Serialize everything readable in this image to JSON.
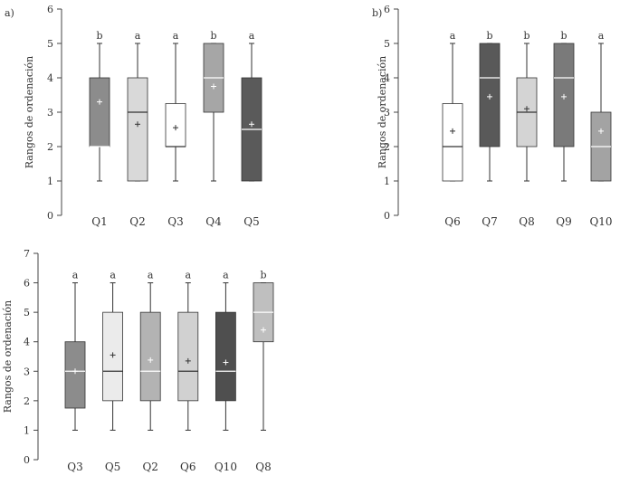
{
  "chart_data": [
    {
      "type": "box",
      "panel_label": "a)",
      "ylabel": "Rangos de ordenación",
      "ylim": [
        0,
        6
      ],
      "yticks": [
        0,
        1,
        2,
        3,
        4,
        5,
        6
      ],
      "categories": [
        "Q1",
        "Q2",
        "Q3",
        "Q4",
        "Q5"
      ],
      "boxes": [
        {
          "name": "Q1",
          "min": 1,
          "q1": 2,
          "median": 2,
          "q3": 4,
          "max": 5,
          "mean": 3.3,
          "letter": "b",
          "fill": "#8c8c8c"
        },
        {
          "name": "Q2",
          "min": 1,
          "q1": 1,
          "median": 3,
          "q3": 4,
          "max": 5,
          "mean": 2.65,
          "letter": "a",
          "fill": "#d9d9d9"
        },
        {
          "name": "Q3",
          "min": 1,
          "q1": 2,
          "median": 2,
          "q3": 3.25,
          "max": 5,
          "mean": 2.55,
          "letter": "a",
          "fill": "#ffffff"
        },
        {
          "name": "Q4",
          "min": 1,
          "q1": 3,
          "median": 4,
          "q3": 5,
          "max": 5,
          "mean": 3.75,
          "letter": "b",
          "fill": "#a6a6a6"
        },
        {
          "name": "Q5",
          "min": 1,
          "q1": 1,
          "median": 2.5,
          "q3": 4,
          "max": 5,
          "mean": 2.65,
          "letter": "a",
          "fill": "#5a5a5a"
        }
      ]
    },
    {
      "type": "box",
      "panel_label": "b)",
      "ylabel": "Rangos de ordenación",
      "ylim": [
        0,
        6
      ],
      "yticks": [
        0,
        1,
        2,
        3,
        4,
        5,
        6
      ],
      "categories": [
        "Q6",
        "Q7",
        "Q8",
        "Q9",
        "Q10"
      ],
      "boxes": [
        {
          "name": "Q6",
          "min": 1,
          "q1": 1,
          "median": 2,
          "q3": 3.25,
          "max": 5,
          "mean": 2.45,
          "letter": "a",
          "fill": "#ffffff"
        },
        {
          "name": "Q7",
          "min": 1,
          "q1": 2,
          "median": 4,
          "q3": 5,
          "max": 5,
          "mean": 3.45,
          "letter": "b",
          "fill": "#595959"
        },
        {
          "name": "Q8",
          "min": 1,
          "q1": 2,
          "median": 3,
          "q3": 4,
          "max": 5,
          "mean": 3.1,
          "letter": "b",
          "fill": "#d4d4d4"
        },
        {
          "name": "Q9",
          "min": 1,
          "q1": 2,
          "median": 4,
          "q3": 5,
          "max": 5,
          "mean": 3.45,
          "letter": "b",
          "fill": "#7a7a7a"
        },
        {
          "name": "Q10",
          "min": 1,
          "q1": 1,
          "median": 2,
          "q3": 3,
          "max": 5,
          "mean": 2.45,
          "letter": "a",
          "fill": "#a3a3a3"
        }
      ]
    },
    {
      "type": "box",
      "panel_label": "",
      "ylabel": "Rangos de ordenación",
      "ylim": [
        0,
        7
      ],
      "yticks": [
        0,
        1,
        2,
        3,
        4,
        5,
        6,
        7
      ],
      "categories": [
        "Q3",
        "Q5",
        "Q2",
        "Q6",
        "Q10",
        "Q8"
      ],
      "boxes": [
        {
          "name": "Q3",
          "min": 1,
          "q1": 1.75,
          "median": 3,
          "q3": 4,
          "max": 6,
          "mean": 3.0,
          "letter": "a",
          "fill": "#8c8c8c"
        },
        {
          "name": "Q5",
          "min": 1,
          "q1": 2,
          "median": 3,
          "q3": 5,
          "max": 6,
          "mean": 3.55,
          "letter": "a",
          "fill": "#ebebeb"
        },
        {
          "name": "Q2",
          "min": 1,
          "q1": 2,
          "median": 3,
          "q3": 5,
          "max": 6,
          "mean": 3.38,
          "letter": "a",
          "fill": "#b3b3b3"
        },
        {
          "name": "Q6",
          "min": 1,
          "q1": 2,
          "median": 3,
          "q3": 5,
          "max": 6,
          "mean": 3.35,
          "letter": "a",
          "fill": "#d1d1d1"
        },
        {
          "name": "Q10",
          "min": 1,
          "q1": 2,
          "median": 3,
          "q3": 5,
          "max": 6,
          "mean": 3.3,
          "letter": "a",
          "fill": "#4f4f4f"
        },
        {
          "name": "Q8",
          "min": 1,
          "q1": 4,
          "median": 5,
          "q3": 6,
          "max": 6,
          "mean": 4.4,
          "letter": "b",
          "fill": "#bfbfbf"
        }
      ]
    }
  ]
}
